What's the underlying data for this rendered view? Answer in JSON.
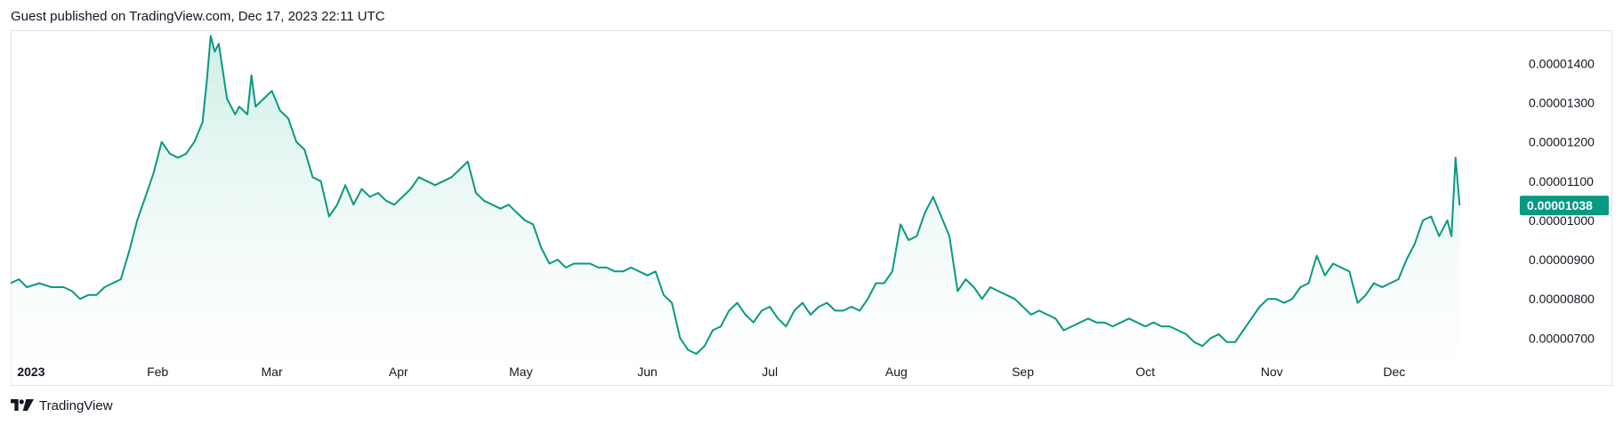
{
  "header": {
    "published_line": "Guest published on TradingView.com, Dec 17, 2023 22:11 UTC"
  },
  "footer": {
    "brand": "TradingView",
    "logo_icon": "tradingview-logo-icon"
  },
  "colors": {
    "line": "#089981",
    "fill_top": "#c8ece3",
    "badge_bg": "#089981",
    "axis_text": "#131722",
    "border": "#e0e3eb"
  },
  "chart_data": {
    "type": "area",
    "title": "",
    "xlabel": "",
    "ylabel": "",
    "ylim": [
      6.6e-06,
      1.48e-05
    ],
    "y_ticks": [
      "0.00001400",
      "0.00001300",
      "0.00001200",
      "0.00001100",
      "0.00001000",
      "0.00000900",
      "0.00000800",
      "0.00000700"
    ],
    "y_tick_values": [
      1.4e-05,
      1.3e-05,
      1.2e-05,
      1.1e-05,
      1e-05,
      9e-06,
      8e-06,
      7e-06
    ],
    "x_ticks": [
      {
        "label": "2023",
        "date": "2023-01-01",
        "bold": true
      },
      {
        "label": "Feb",
        "date": "2023-02-01",
        "bold": false
      },
      {
        "label": "Mar",
        "date": "2023-03-01",
        "bold": false
      },
      {
        "label": "Apr",
        "date": "2023-04-01",
        "bold": false
      },
      {
        "label": "May",
        "date": "2023-05-01",
        "bold": false
      },
      {
        "label": "Jun",
        "date": "2023-06-01",
        "bold": false
      },
      {
        "label": "Jul",
        "date": "2023-07-01",
        "bold": false
      },
      {
        "label": "Aug",
        "date": "2023-08-01",
        "bold": false
      },
      {
        "label": "Sep",
        "date": "2023-09-01",
        "bold": false
      },
      {
        "label": "Oct",
        "date": "2023-10-01",
        "bold": false
      },
      {
        "label": "Nov",
        "date": "2023-11-01",
        "bold": false
      },
      {
        "label": "Dec",
        "date": "2023-12-01",
        "bold": false
      }
    ],
    "x_range": [
      "2022-12-27",
      "2023-12-30"
    ],
    "last_price_label": "0.00001038",
    "last_price": 1.038e-05,
    "grid": false,
    "series": [
      {
        "name": "",
        "points": [
          [
            "2022-12-27",
            8.4e-06
          ],
          [
            "2022-12-29",
            8.5e-06
          ],
          [
            "2022-12-31",
            8.3e-06
          ],
          [
            "2023-01-03",
            8.4e-06
          ],
          [
            "2023-01-06",
            8.3e-06
          ],
          [
            "2023-01-09",
            8.3e-06
          ],
          [
            "2023-01-11",
            8.2e-06
          ],
          [
            "2023-01-13",
            8e-06
          ],
          [
            "2023-01-15",
            8.1e-06
          ],
          [
            "2023-01-17",
            8.1e-06
          ],
          [
            "2023-01-19",
            8.3e-06
          ],
          [
            "2023-01-21",
            8.4e-06
          ],
          [
            "2023-01-23",
            8.5e-06
          ],
          [
            "2023-01-25",
            9.2e-06
          ],
          [
            "2023-01-27",
            1e-05
          ],
          [
            "2023-01-29",
            1.06e-05
          ],
          [
            "2023-01-31",
            1.12e-05
          ],
          [
            "2023-02-02",
            1.2e-05
          ],
          [
            "2023-02-04",
            1.17e-05
          ],
          [
            "2023-02-06",
            1.16e-05
          ],
          [
            "2023-02-08",
            1.17e-05
          ],
          [
            "2023-02-10",
            1.2e-05
          ],
          [
            "2023-02-12",
            1.25e-05
          ],
          [
            "2023-02-13",
            1.35e-05
          ],
          [
            "2023-02-14",
            1.47e-05
          ],
          [
            "2023-02-15",
            1.43e-05
          ],
          [
            "2023-02-16",
            1.45e-05
          ],
          [
            "2023-02-18",
            1.31e-05
          ],
          [
            "2023-02-20",
            1.27e-05
          ],
          [
            "2023-02-21",
            1.29e-05
          ],
          [
            "2023-02-23",
            1.27e-05
          ],
          [
            "2023-02-24",
            1.37e-05
          ],
          [
            "2023-02-25",
            1.29e-05
          ],
          [
            "2023-02-27",
            1.31e-05
          ],
          [
            "2023-03-01",
            1.33e-05
          ],
          [
            "2023-03-03",
            1.28e-05
          ],
          [
            "2023-03-05",
            1.26e-05
          ],
          [
            "2023-03-07",
            1.2e-05
          ],
          [
            "2023-03-09",
            1.18e-05
          ],
          [
            "2023-03-11",
            1.11e-05
          ],
          [
            "2023-03-13",
            1.1e-05
          ],
          [
            "2023-03-15",
            1.01e-05
          ],
          [
            "2023-03-17",
            1.04e-05
          ],
          [
            "2023-03-19",
            1.09e-05
          ],
          [
            "2023-03-21",
            1.04e-05
          ],
          [
            "2023-03-23",
            1.08e-05
          ],
          [
            "2023-03-25",
            1.06e-05
          ],
          [
            "2023-03-27",
            1.07e-05
          ],
          [
            "2023-03-29",
            1.05e-05
          ],
          [
            "2023-03-31",
            1.04e-05
          ],
          [
            "2023-04-02",
            1.06e-05
          ],
          [
            "2023-04-04",
            1.08e-05
          ],
          [
            "2023-04-06",
            1.11e-05
          ],
          [
            "2023-04-08",
            1.1e-05
          ],
          [
            "2023-04-10",
            1.09e-05
          ],
          [
            "2023-04-12",
            1.1e-05
          ],
          [
            "2023-04-14",
            1.11e-05
          ],
          [
            "2023-04-16",
            1.13e-05
          ],
          [
            "2023-04-18",
            1.15e-05
          ],
          [
            "2023-04-20",
            1.07e-05
          ],
          [
            "2023-04-22",
            1.05e-05
          ],
          [
            "2023-04-24",
            1.04e-05
          ],
          [
            "2023-04-26",
            1.03e-05
          ],
          [
            "2023-04-28",
            1.04e-05
          ],
          [
            "2023-04-30",
            1.02e-05
          ],
          [
            "2023-05-02",
            1e-05
          ],
          [
            "2023-05-04",
            9.9e-06
          ],
          [
            "2023-05-06",
            9.3e-06
          ],
          [
            "2023-05-08",
            8.9e-06
          ],
          [
            "2023-05-10",
            9e-06
          ],
          [
            "2023-05-12",
            8.8e-06
          ],
          [
            "2023-05-14",
            8.9e-06
          ],
          [
            "2023-05-16",
            8.9e-06
          ],
          [
            "2023-05-18",
            8.9e-06
          ],
          [
            "2023-05-20",
            8.8e-06
          ],
          [
            "2023-05-22",
            8.8e-06
          ],
          [
            "2023-05-24",
            8.7e-06
          ],
          [
            "2023-05-26",
            8.7e-06
          ],
          [
            "2023-05-28",
            8.8e-06
          ],
          [
            "2023-05-30",
            8.7e-06
          ],
          [
            "2023-06-01",
            8.6e-06
          ],
          [
            "2023-06-03",
            8.7e-06
          ],
          [
            "2023-06-05",
            8.1e-06
          ],
          [
            "2023-06-07",
            7.9e-06
          ],
          [
            "2023-06-09",
            7e-06
          ],
          [
            "2023-06-11",
            6.7e-06
          ],
          [
            "2023-06-13",
            6.6e-06
          ],
          [
            "2023-06-15",
            6.8e-06
          ],
          [
            "2023-06-17",
            7.2e-06
          ],
          [
            "2023-06-19",
            7.3e-06
          ],
          [
            "2023-06-21",
            7.7e-06
          ],
          [
            "2023-06-23",
            7.9e-06
          ],
          [
            "2023-06-25",
            7.6e-06
          ],
          [
            "2023-06-27",
            7.4e-06
          ],
          [
            "2023-06-29",
            7.7e-06
          ],
          [
            "2023-07-01",
            7.8e-06
          ],
          [
            "2023-07-03",
            7.5e-06
          ],
          [
            "2023-07-05",
            7.3e-06
          ],
          [
            "2023-07-07",
            7.7e-06
          ],
          [
            "2023-07-09",
            7.9e-06
          ],
          [
            "2023-07-11",
            7.6e-06
          ],
          [
            "2023-07-13",
            7.8e-06
          ],
          [
            "2023-07-15",
            7.9e-06
          ],
          [
            "2023-07-17",
            7.7e-06
          ],
          [
            "2023-07-19",
            7.7e-06
          ],
          [
            "2023-07-21",
            7.8e-06
          ],
          [
            "2023-07-23",
            7.7e-06
          ],
          [
            "2023-07-25",
            8e-06
          ],
          [
            "2023-07-27",
            8.4e-06
          ],
          [
            "2023-07-29",
            8.4e-06
          ],
          [
            "2023-07-31",
            8.7e-06
          ],
          [
            "2023-08-02",
            9.9e-06
          ],
          [
            "2023-08-04",
            9.5e-06
          ],
          [
            "2023-08-06",
            9.6e-06
          ],
          [
            "2023-08-08",
            1.02e-05
          ],
          [
            "2023-08-10",
            1.06e-05
          ],
          [
            "2023-08-12",
            1.01e-05
          ],
          [
            "2023-08-14",
            9.6e-06
          ],
          [
            "2023-08-16",
            8.2e-06
          ],
          [
            "2023-08-18",
            8.5e-06
          ],
          [
            "2023-08-20",
            8.3e-06
          ],
          [
            "2023-08-22",
            8e-06
          ],
          [
            "2023-08-24",
            8.3e-06
          ],
          [
            "2023-08-26",
            8.2e-06
          ],
          [
            "2023-08-28",
            8.1e-06
          ],
          [
            "2023-08-30",
            8e-06
          ],
          [
            "2023-09-01",
            7.8e-06
          ],
          [
            "2023-09-03",
            7.6e-06
          ],
          [
            "2023-09-05",
            7.7e-06
          ],
          [
            "2023-09-07",
            7.6e-06
          ],
          [
            "2023-09-09",
            7.5e-06
          ],
          [
            "2023-09-11",
            7.2e-06
          ],
          [
            "2023-09-13",
            7.3e-06
          ],
          [
            "2023-09-15",
            7.4e-06
          ],
          [
            "2023-09-17",
            7.5e-06
          ],
          [
            "2023-09-19",
            7.4e-06
          ],
          [
            "2023-09-21",
            7.4e-06
          ],
          [
            "2023-09-23",
            7.3e-06
          ],
          [
            "2023-09-25",
            7.4e-06
          ],
          [
            "2023-09-27",
            7.5e-06
          ],
          [
            "2023-09-29",
            7.4e-06
          ],
          [
            "2023-10-01",
            7.3e-06
          ],
          [
            "2023-10-03",
            7.4e-06
          ],
          [
            "2023-10-05",
            7.3e-06
          ],
          [
            "2023-10-07",
            7.3e-06
          ],
          [
            "2023-10-09",
            7.2e-06
          ],
          [
            "2023-10-11",
            7.1e-06
          ],
          [
            "2023-10-13",
            6.9e-06
          ],
          [
            "2023-10-15",
            6.8e-06
          ],
          [
            "2023-10-17",
            7e-06
          ],
          [
            "2023-10-19",
            7.1e-06
          ],
          [
            "2023-10-21",
            6.9e-06
          ],
          [
            "2023-10-23",
            6.9e-06
          ],
          [
            "2023-10-25",
            7.2e-06
          ],
          [
            "2023-10-27",
            7.5e-06
          ],
          [
            "2023-10-29",
            7.8e-06
          ],
          [
            "2023-10-31",
            8e-06
          ],
          [
            "2023-11-02",
            8e-06
          ],
          [
            "2023-11-04",
            7.9e-06
          ],
          [
            "2023-11-06",
            8e-06
          ],
          [
            "2023-11-08",
            8.3e-06
          ],
          [
            "2023-11-10",
            8.4e-06
          ],
          [
            "2023-11-12",
            9.1e-06
          ],
          [
            "2023-11-14",
            8.6e-06
          ],
          [
            "2023-11-16",
            8.9e-06
          ],
          [
            "2023-11-18",
            8.8e-06
          ],
          [
            "2023-11-20",
            8.7e-06
          ],
          [
            "2023-11-22",
            7.9e-06
          ],
          [
            "2023-11-24",
            8.1e-06
          ],
          [
            "2023-11-26",
            8.4e-06
          ],
          [
            "2023-11-28",
            8.3e-06
          ],
          [
            "2023-11-30",
            8.4e-06
          ],
          [
            "2023-12-02",
            8.5e-06
          ],
          [
            "2023-12-04",
            9e-06
          ],
          [
            "2023-12-06",
            9.4e-06
          ],
          [
            "2023-12-08",
            1e-05
          ],
          [
            "2023-12-10",
            1.01e-05
          ],
          [
            "2023-12-12",
            9.6e-06
          ],
          [
            "2023-12-14",
            1e-05
          ],
          [
            "2023-12-15",
            9.6e-06
          ],
          [
            "2023-12-16",
            1.16e-05
          ],
          [
            "2023-12-17",
            1.038e-05
          ]
        ]
      }
    ]
  }
}
